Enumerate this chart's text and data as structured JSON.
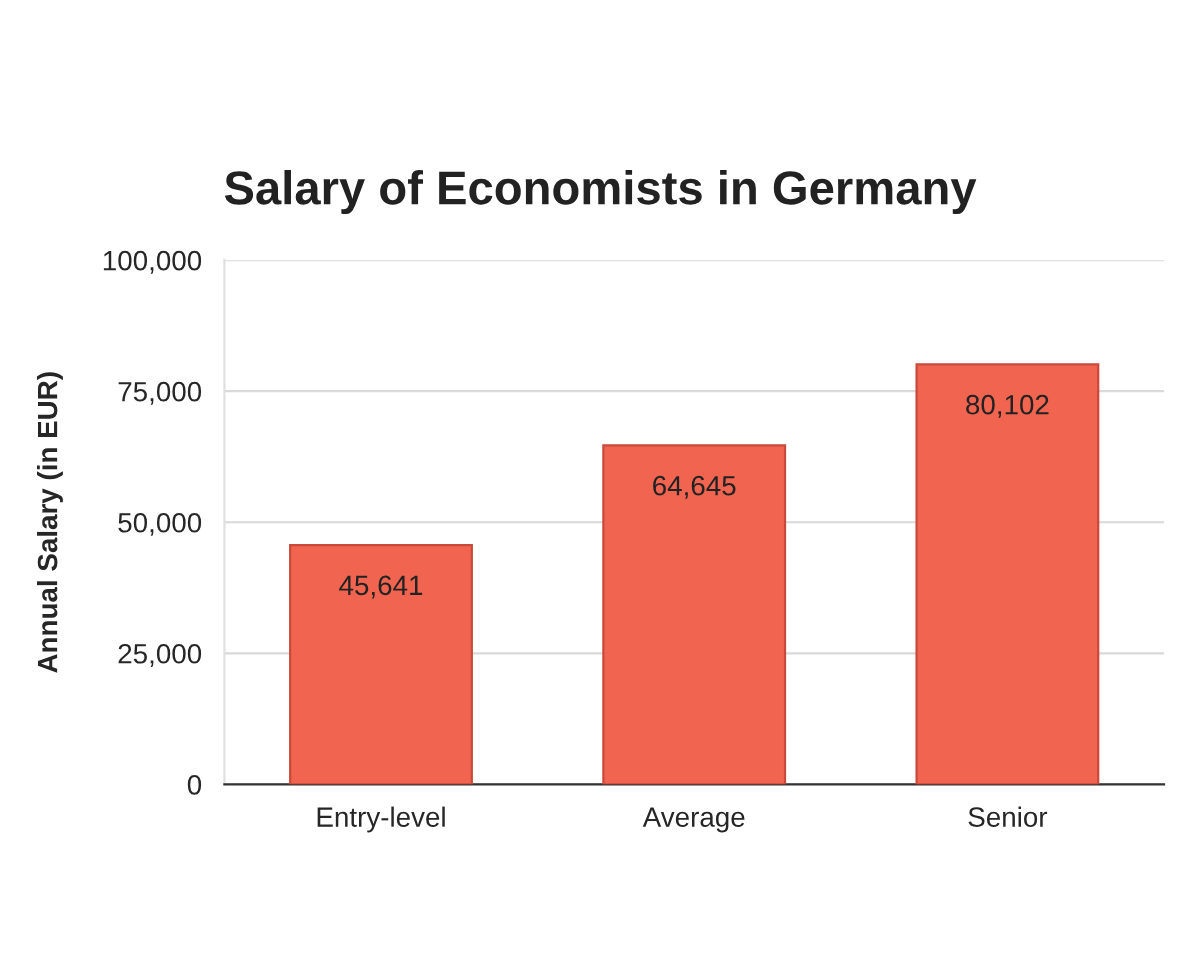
{
  "chart_data": {
    "type": "bar",
    "title": "Salary of Economists in Germany",
    "ylabel": "Annual Salary (in EUR)",
    "categories": [
      "Entry-level",
      "Average",
      "Senior"
    ],
    "values": [
      45641,
      64645,
      80102
    ],
    "color": "#f06450",
    "value_labels": [
      "45,641",
      "64,645",
      "80,102"
    ],
    "ylim": [
      0,
      100000
    ],
    "yticks": [
      {
        "value": 0,
        "label": "0"
      },
      {
        "value": 25000,
        "label": "25,000"
      },
      {
        "value": 50000,
        "label": "50,000"
      },
      {
        "value": 75000,
        "label": "75,000"
      },
      {
        "value": 100000,
        "label": "100,000"
      }
    ],
    "grid": "y"
  }
}
